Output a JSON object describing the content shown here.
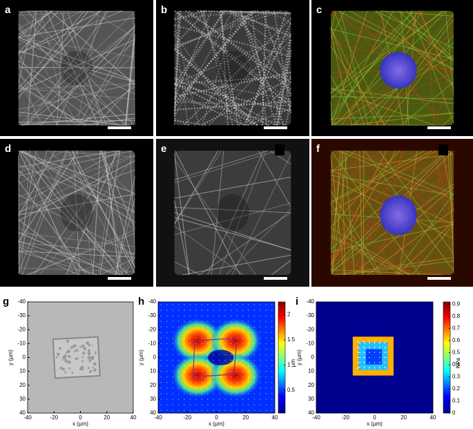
{
  "panels": [
    {
      "letter": "a"
    },
    {
      "letter": "b"
    },
    {
      "letter": "c"
    },
    {
      "letter": "d"
    },
    {
      "letter": "e"
    },
    {
      "letter": "f"
    }
  ],
  "plots": [
    {
      "letter": "g",
      "x_label": "x (µm)",
      "y_label": "y (µm)",
      "xlim": [
        -40,
        40
      ],
      "ylim": [
        -40,
        40
      ],
      "xticks": [
        -40,
        -20,
        0,
        20,
        40
      ],
      "yticks": [
        -40,
        -30,
        -20,
        -10,
        0,
        10,
        20,
        30,
        40
      ]
    },
    {
      "letter": "h",
      "x_label": "x (µm)",
      "y_label": "y (µm)",
      "xlim": [
        -40,
        40
      ],
      "ylim": [
        -40,
        40
      ],
      "xticks": [
        -40,
        -20,
        0,
        20,
        40
      ],
      "yticks": [
        -40,
        -30,
        -20,
        -10,
        0,
        10,
        20,
        30,
        40
      ],
      "colorbar": {
        "label": "µm",
        "clim": [
          0.05,
          2.25
        ],
        "ticks": [
          0.5,
          1,
          1.5,
          2
        ]
      }
    },
    {
      "letter": "i",
      "x_label": "x (µm)",
      "y_label": "y (µm)",
      "xlim": [
        -40,
        40
      ],
      "ylim": [
        -40,
        40
      ],
      "xticks": [
        -40,
        -20,
        0,
        20,
        40
      ],
      "yticks": [
        -40,
        -30,
        -20,
        -10,
        0,
        10,
        20,
        30,
        40
      ],
      "colorbar": {
        "label": "KPa",
        "clim": [
          0,
          0.92
        ],
        "ticks": [
          0,
          0.1,
          0.2,
          0.3,
          0.4,
          0.5,
          0.6,
          0.7,
          0.8,
          0.9
        ]
      }
    }
  ]
}
